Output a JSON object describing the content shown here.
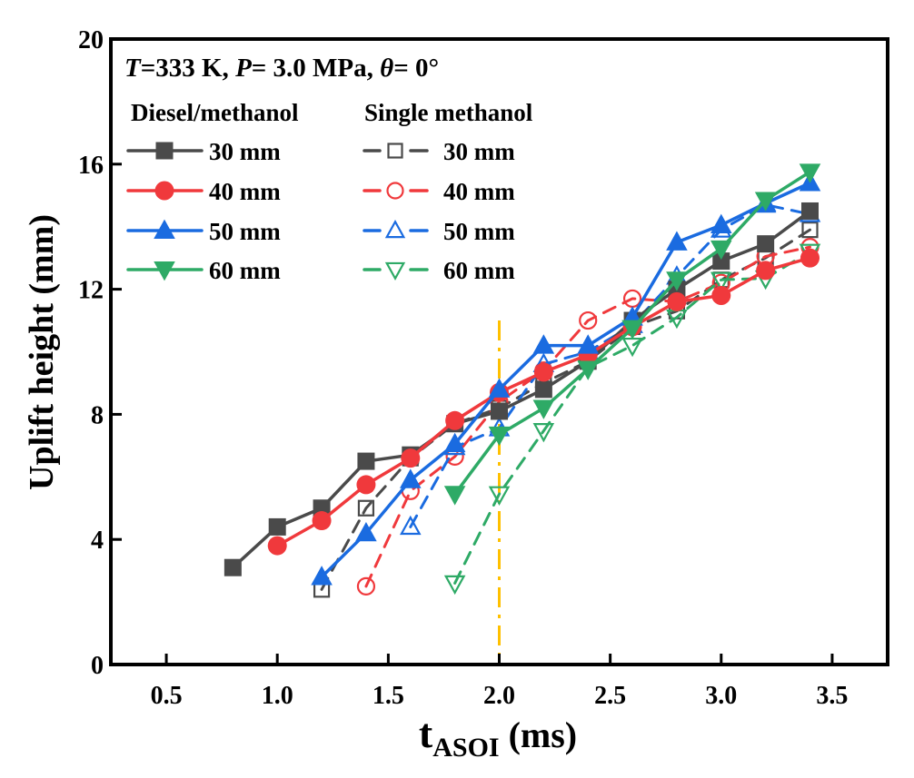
{
  "chart_data": {
    "type": "line",
    "title": "",
    "annotation": {
      "conditions": [
        {
          "var": "T",
          "text": "=333 K, "
        },
        {
          "var": "P",
          "text": "= 3.0 MPa, "
        },
        {
          "var": "θ",
          "text": "= 0°"
        }
      ]
    },
    "xlabel": {
      "main": "t",
      "subscript": "ASOI",
      "unit": " (ms)"
    },
    "ylabel": "Uplift height (mm)",
    "xlim": [
      0.25,
      3.75
    ],
    "ylim": [
      0,
      20
    ],
    "xticks": [
      0.5,
      1.0,
      1.5,
      2.0,
      2.5,
      3.0,
      3.5
    ],
    "xtick_labels": [
      "0.5",
      "1.0",
      "1.5",
      "2.0",
      "2.5",
      "3.0",
      "3.5"
    ],
    "yticks": [
      0,
      4,
      8,
      12,
      16,
      20
    ],
    "ytick_labels": [
      "0",
      "4",
      "8",
      "12",
      "16",
      "20"
    ],
    "grid": false,
    "legend": {
      "placement": "top-left",
      "group_titles": [
        "Diesel/methanol",
        "Single methanol"
      ]
    },
    "reference_line": {
      "x": 2.0,
      "y_top": 11.0,
      "style": "dash-dot",
      "color": "#FFC000"
    },
    "series": [
      {
        "name": "Diesel/methanol 30 mm",
        "label": "30 mm",
        "group": 0,
        "color": "#4a4a4a",
        "marker": "square",
        "filled": true,
        "dashed": false,
        "x": [
          0.8,
          1.0,
          1.2,
          1.4,
          1.6,
          1.8,
          2.0,
          2.2,
          2.4,
          2.6,
          2.8,
          3.0,
          3.2,
          3.4
        ],
        "y": [
          3.1,
          4.4,
          5.0,
          6.5,
          6.7,
          7.7,
          8.1,
          8.8,
          9.7,
          11.0,
          12.0,
          12.9,
          13.45,
          14.5
        ]
      },
      {
        "name": "Diesel/methanol 40 mm",
        "label": "40 mm",
        "group": 0,
        "color": "#f0393c",
        "marker": "circle",
        "filled": true,
        "dashed": false,
        "x": [
          1.0,
          1.2,
          1.4,
          1.6,
          1.8,
          2.0,
          2.2,
          2.4,
          2.6,
          2.8,
          3.0,
          3.2,
          3.4
        ],
        "y": [
          3.8,
          4.6,
          5.75,
          6.6,
          7.8,
          8.7,
          9.35,
          9.9,
          10.8,
          11.6,
          11.8,
          12.6,
          13.0
        ]
      },
      {
        "name": "Diesel/methanol 50 mm",
        "label": "50 mm",
        "group": 0,
        "color": "#1a6be0",
        "marker": "triangle-up",
        "filled": true,
        "dashed": false,
        "x": [
          1.2,
          1.4,
          1.6,
          1.8,
          2.0,
          2.2,
          2.4,
          2.6,
          2.8,
          3.0,
          3.2,
          3.4
        ],
        "y": [
          2.8,
          4.2,
          5.9,
          7.05,
          8.8,
          10.2,
          10.2,
          11.1,
          13.5,
          14.05,
          14.75,
          15.4
        ]
      },
      {
        "name": "Diesel/methanol 60 mm",
        "label": "60 mm",
        "group": 0,
        "color": "#2eaa66",
        "marker": "triangle-down",
        "filled": true,
        "dashed": false,
        "x": [
          1.8,
          2.0,
          2.2,
          2.4,
          2.6,
          2.8,
          3.0,
          3.2,
          3.4
        ],
        "y": [
          5.45,
          7.35,
          8.2,
          9.45,
          10.75,
          12.3,
          13.3,
          14.85,
          15.75
        ]
      },
      {
        "name": "Single methanol 30 mm",
        "label": "30 mm",
        "group": 1,
        "color": "#4a4a4a",
        "marker": "square",
        "filled": false,
        "dashed": true,
        "x": [
          1.2,
          1.4,
          1.6,
          1.8,
          2.0,
          2.2,
          2.4,
          2.6,
          2.8,
          3.0,
          3.2,
          3.4
        ],
        "y": [
          2.4,
          5.0,
          6.6,
          7.7,
          8.2,
          9.0,
          9.7,
          10.8,
          11.3,
          12.3,
          13.0,
          13.9
        ]
      },
      {
        "name": "Single methanol 40 mm",
        "label": "40 mm",
        "group": 1,
        "color": "#f0393c",
        "marker": "circle",
        "filled": false,
        "dashed": true,
        "x": [
          1.4,
          1.6,
          1.8,
          2.0,
          2.2,
          2.4,
          2.6,
          2.8,
          3.0,
          3.2,
          3.4
        ],
        "y": [
          2.5,
          5.55,
          6.65,
          8.4,
          9.4,
          11.0,
          11.7,
          11.6,
          12.2,
          13.05,
          13.35
        ]
      },
      {
        "name": "Single methanol 50 mm",
        "label": "50 mm",
        "group": 1,
        "color": "#1a6be0",
        "marker": "triangle-up",
        "filled": false,
        "dashed": true,
        "x": [
          1.6,
          1.8,
          2.0,
          2.2,
          2.4,
          2.6,
          2.8,
          3.0,
          3.2,
          3.4
        ],
        "y": [
          4.4,
          6.95,
          7.55,
          9.6,
          10.0,
          10.85,
          12.4,
          13.9,
          14.7,
          14.4
        ]
      },
      {
        "name": "Single methanol 60 mm",
        "label": "60 mm",
        "group": 1,
        "color": "#2eaa66",
        "marker": "triangle-down",
        "filled": false,
        "dashed": true,
        "x": [
          1.8,
          2.0,
          2.2,
          2.4,
          2.6,
          2.8,
          3.0,
          3.2,
          3.4
        ],
        "y": [
          2.6,
          5.45,
          7.47,
          9.5,
          10.2,
          11.1,
          12.3,
          12.35,
          13.2
        ]
      }
    ]
  }
}
